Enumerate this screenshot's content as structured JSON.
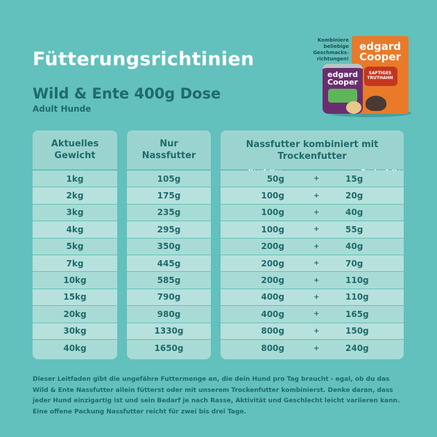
{
  "title": "Fütterungsrichtinien",
  "subtitle": "Wild & Ente 400g Dose",
  "audience": "Adult Hunde",
  "product": {
    "note": "Kombiniere beliebige Geschmacks- richtungen!",
    "bag_logo": "edgard Cooper",
    "bag_label": "SAFTIGES TRUTHAHN",
    "can_logo": "edgard Cooper"
  },
  "table": {
    "weight_header": [
      "Aktuelles",
      "Gewicht"
    ],
    "wet_header": [
      "Nur",
      "Nassfutter"
    ],
    "combo_header": "Nassfutter kombiniert mit Trockenfutter",
    "combo_wet_label": "Nassfutter",
    "combo_dry_label": "Trockenfutter",
    "rows": [
      {
        "weight": "1kg",
        "wet_only": "105g",
        "wet": "50g",
        "dry": "15g"
      },
      {
        "weight": "2kg",
        "wet_only": "175g",
        "wet": "100g",
        "dry": "20g"
      },
      {
        "weight": "3kg",
        "wet_only": "235g",
        "wet": "100g",
        "dry": "40g"
      },
      {
        "weight": "4kg",
        "wet_only": "295g",
        "wet": "100g",
        "dry": "55g"
      },
      {
        "weight": "5kg",
        "wet_only": "350g",
        "wet": "200g",
        "dry": "40g"
      },
      {
        "weight": "7kg",
        "wet_only": "445g",
        "wet": "200g",
        "dry": "70g"
      },
      {
        "weight": "10kg",
        "wet_only": "585g",
        "wet": "200g",
        "dry": "110g"
      },
      {
        "weight": "15kg",
        "wet_only": "790g",
        "wet": "400g",
        "dry": "110g"
      },
      {
        "weight": "20kg",
        "wet_only": "980g",
        "wet": "400g",
        "dry": "165g"
      },
      {
        "weight": "30kg",
        "wet_only": "1330g",
        "wet": "800g",
        "dry": "150g"
      },
      {
        "weight": "40kg",
        "wet_only": "1650g",
        "wet": "800g",
        "dry": "240g"
      }
    ],
    "plus": "+"
  },
  "footer": [
    "Dieser Leitfaden gibt die ungefähre Futtermenge an, die dein Hund pro Tag braucht - egal, ob du das",
    "Wild & Ente Nassfutter allein fütterst oder mit unserem Trockenfutter kombinierst. Denke daran, dass",
    "jeder Hund einzigartig ist und sein Bedarf je nach Rasse, Aktivität und Geschlecht leicht variieren kann.",
    "Eine offene Packung Nassfutter reicht für zwei bis drei Tage."
  ]
}
